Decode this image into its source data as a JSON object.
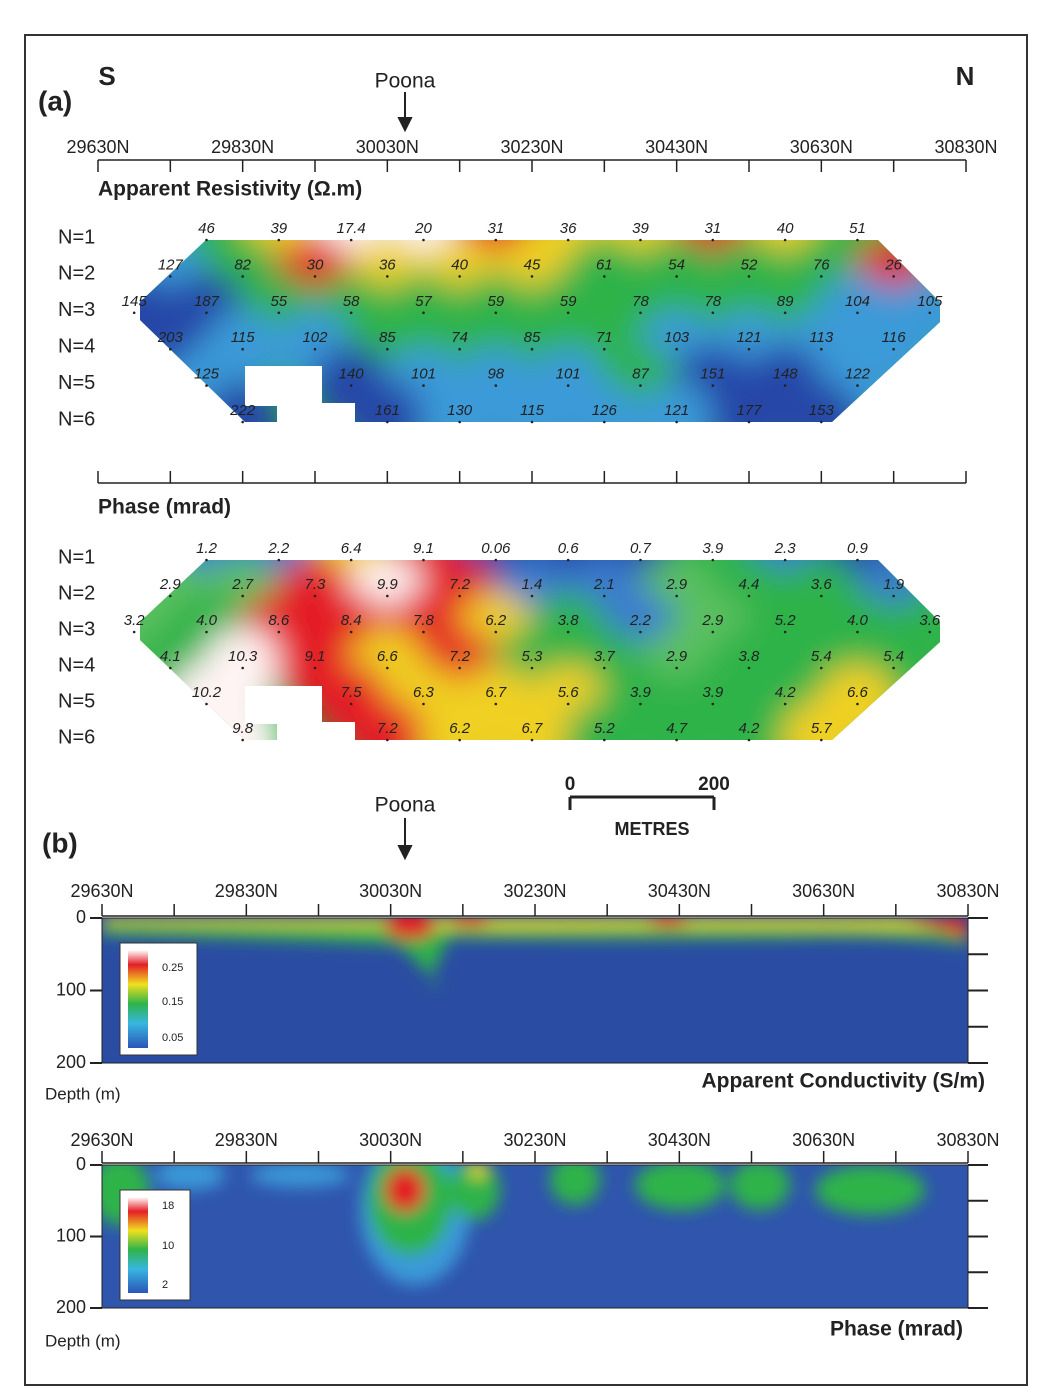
{
  "panel_a": {
    "label": "(a)",
    "south": "S",
    "north": "N",
    "marker": "Poona",
    "axis_labels": [
      "29630N",
      "29830N",
      "30030N",
      "30230N",
      "30430N",
      "30630N",
      "30830N"
    ],
    "resistivity": {
      "title": "Apparent Resistivity  (Ω.m)",
      "row_labels": [
        "N=1",
        "N=2",
        "N=3",
        "N=4",
        "N=5",
        "N=6"
      ],
      "rows": [
        [
          "46",
          "39",
          "17.4",
          "20",
          "31",
          "36",
          "39",
          "31",
          "40",
          "51"
        ],
        [
          "127",
          "82",
          "30",
          "36",
          "40",
          "45",
          "61",
          "54",
          "52",
          "76",
          "26"
        ],
        [
          "145",
          "187",
          "55",
          "58",
          "57",
          "59",
          "59",
          "78",
          "78",
          "89",
          "104",
          "105"
        ],
        [
          "203",
          "115",
          "102",
          "85",
          "74",
          "85",
          "71",
          "103",
          "121",
          "113",
          "116"
        ],
        [
          "125",
          "140",
          "101",
          "98",
          "101",
          "87",
          "151",
          "148",
          "122"
        ],
        [
          "222",
          "161",
          "130",
          "115",
          "126",
          "121",
          "177",
          "153"
        ]
      ]
    },
    "phase": {
      "title": "Phase (mrad)",
      "row_labels": [
        "N=1",
        "N=2",
        "N=3",
        "N=4",
        "N=5",
        "N=6"
      ],
      "rows": [
        [
          "1.2",
          "2.2",
          "6.4",
          "9.1",
          "0.06",
          "0.6",
          "0.7",
          "3.9",
          "2.3",
          "0.9"
        ],
        [
          "2.9",
          "2.7",
          "7.3",
          "9.9",
          "7.2",
          "1.4",
          "2.1",
          "2.9",
          "4.4",
          "3.6",
          "1.9"
        ],
        [
          "3.2",
          "4.0",
          "8.6",
          "8.4",
          "7.8",
          "6.2",
          "3.8",
          "2.2",
          "2.9",
          "5.2",
          "4.0",
          "3.6"
        ],
        [
          "4.1",
          "10.3",
          "9.1",
          "6.6",
          "7.2",
          "5.3",
          "3.7",
          "2.9",
          "3.8",
          "5.4",
          "5.4"
        ],
        [
          "10.2",
          "7.5",
          "6.3",
          "6.7",
          "5.6",
          "3.9",
          "3.9",
          "4.2",
          "6.6"
        ],
        [
          "9.8",
          "7.2",
          "6.2",
          "6.7",
          "5.2",
          "4.7",
          "4.2",
          "5.7"
        ]
      ]
    }
  },
  "scale_bar": {
    "start": "0",
    "end": "200",
    "unit": "METRES"
  },
  "panel_b": {
    "label": "(b)",
    "marker": "Poona",
    "depth_ticks": [
      "0",
      "100",
      "200"
    ],
    "depth_label": "Depth (m)",
    "conductivity": {
      "title": "Apparent Conductivity (S/m)",
      "legend": [
        "0.25",
        "0.15",
        "0.05"
      ]
    },
    "phase": {
      "title": "Phase (mrad)",
      "legend": [
        "18",
        "10",
        "2"
      ]
    }
  }
}
